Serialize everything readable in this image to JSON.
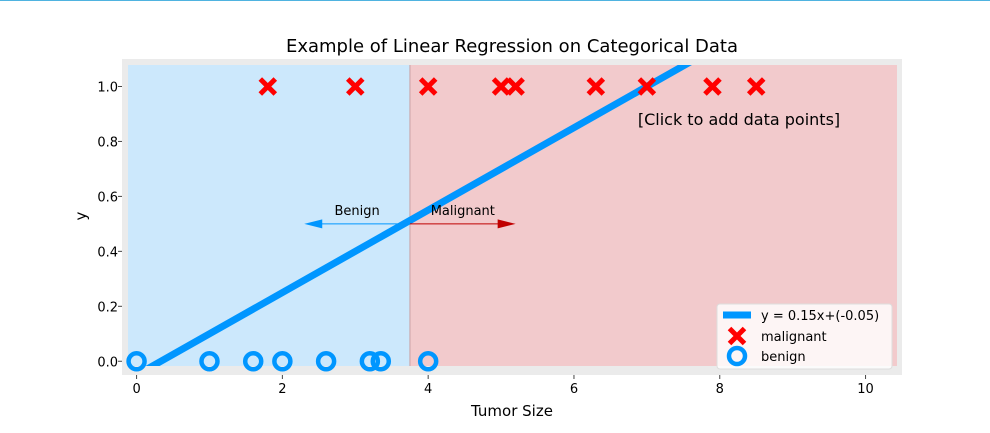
{
  "chart_data": {
    "type": "scatter",
    "title": "Example of Linear Regression on Categorical Data",
    "xlabel": "Tumor Size",
    "ylabel": "y",
    "xlim": [
      -0.2,
      10.5
    ],
    "ylim": [
      -0.05,
      1.1
    ],
    "xticks": [
      0,
      2,
      4,
      6,
      8,
      10
    ],
    "yticks": [
      0.0,
      0.2,
      0.4,
      0.6,
      0.8,
      1.0
    ],
    "xtick_labels": [
      "0",
      "2",
      "4",
      "6",
      "8",
      "10"
    ],
    "ytick_labels": [
      "0.0",
      "0.2",
      "0.4",
      "0.6",
      "0.8",
      "1.0"
    ],
    "grid": false,
    "decision_boundary_x": 3.75,
    "regions": [
      {
        "label": "Benign",
        "x_range": [
          -0.2,
          3.75
        ],
        "color": "#cce8fc"
      },
      {
        "label": "Malignant",
        "x_range": [
          3.75,
          10.5
        ],
        "color": "#f2cacc"
      }
    ],
    "annotations": [
      {
        "text": "Benign",
        "arrow_from": [
          3.75,
          0.5
        ],
        "arrow_to": [
          2.3,
          0.5
        ],
        "color": "#0096ff"
      },
      {
        "text": "Malignant",
        "arrow_from": [
          3.75,
          0.5
        ],
        "arrow_to": [
          5.2,
          0.5
        ],
        "color": "#c00000"
      }
    ],
    "click_hint": "[Click to add data points]",
    "series": [
      {
        "name": "y = 0.15x+(-0.05)",
        "type": "line",
        "slope": 0.15,
        "intercept": -0.05,
        "color": "#0096ff"
      },
      {
        "name": "malignant",
        "type": "scatter",
        "marker": "x",
        "color": "#ff0000",
        "x": [
          1.8,
          3.0,
          4.0,
          5.0,
          5.2,
          6.3,
          7.0,
          7.9,
          8.5
        ],
        "y": [
          1,
          1,
          1,
          1,
          1,
          1,
          1,
          1,
          1
        ]
      },
      {
        "name": "benign",
        "type": "scatter",
        "marker": "o",
        "color": "#0096ff",
        "x": [
          0.0,
          1.0,
          1.6,
          2.0,
          2.6,
          3.2,
          3.35,
          4.0
        ],
        "y": [
          0,
          0,
          0,
          0,
          0,
          0,
          0,
          0
        ]
      }
    ],
    "legend_position": "lower-right"
  }
}
